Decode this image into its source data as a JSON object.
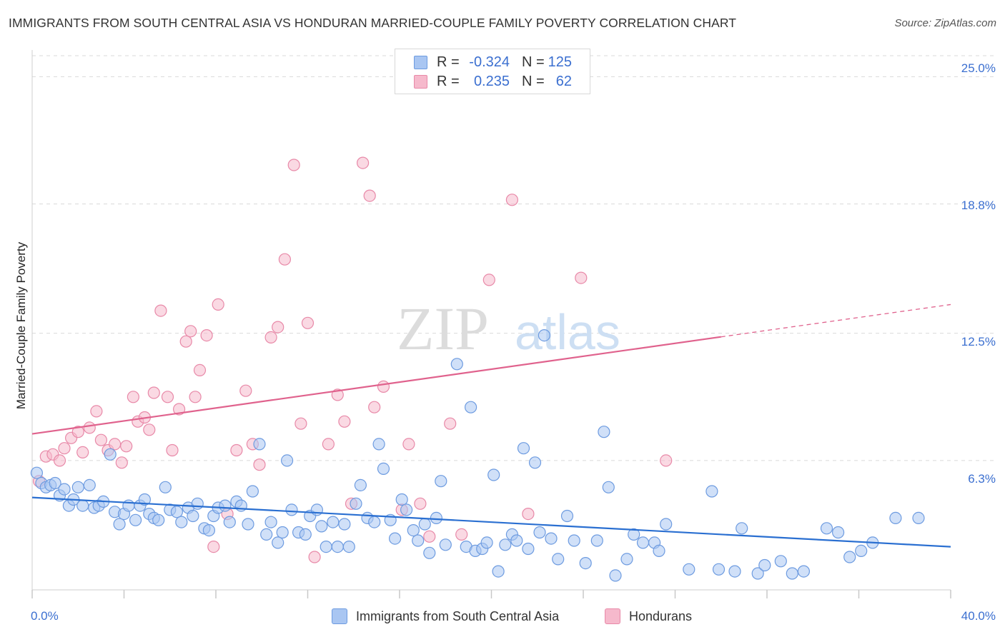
{
  "header": {
    "title": "IMMIGRANTS FROM SOUTH CENTRAL ASIA VS HONDURAN MARRIED-COUPLE FAMILY POVERTY CORRELATION CHART",
    "source": "Source: ZipAtlas.com"
  },
  "watermark": {
    "zip": "ZIP",
    "atlas": "atlas"
  },
  "legend_top": {
    "rows": [
      {
        "r_label": "R =",
        "r_value": "-0.324",
        "n_label": "N =",
        "n_value": "125",
        "color": "#a9c6f2"
      },
      {
        "r_label": "R =",
        "r_value": "0.235",
        "n_label": "N =",
        "n_value": "62",
        "color": "#f6b9cc"
      }
    ]
  },
  "legend_bottom": {
    "items": [
      {
        "label": "Immigrants from South Central Asia",
        "color": "#a9c6f2"
      },
      {
        "label": "Hondurans",
        "color": "#f6b9cc"
      }
    ]
  },
  "axes": {
    "x_min_label": "0.0%",
    "x_max_label": "40.0%",
    "y_ticks": [
      "25.0%",
      "18.8%",
      "12.5%",
      "6.3%"
    ],
    "ylabel": "Married-Couple Family Poverty"
  },
  "colors": {
    "blue_fill": "#a9c6f2",
    "blue_stroke": "#6d9be0",
    "blue_line": "#2a6fd1",
    "pink_fill": "#f6b9cc",
    "pink_stroke": "#e889a8",
    "pink_line": "#e0628d",
    "grid": "#d9d9d9",
    "axis_label": "#3b6fd0"
  },
  "chart_data": {
    "type": "scatter",
    "title": "IMMIGRANTS FROM SOUTH CENTRAL ASIA VS HONDURAN MARRIED-COUPLE FAMILY POVERTY CORRELATION CHART",
    "xlabel": "",
    "ylabel": "Married-Couple Family Poverty",
    "xlim": [
      0,
      40
    ],
    "ylim": [
      0,
      26.3
    ],
    "y_ticks": [
      6.3,
      12.5,
      18.8,
      25.0
    ],
    "grid": true,
    "legend_position": "top-center",
    "series": [
      {
        "name": "Immigrants from South Central Asia",
        "r": -0.324,
        "n": 125,
        "trend": {
          "x0": 0,
          "y0": 4.5,
          "x1": 40,
          "y1": 2.1,
          "solid_until": 40
        },
        "points": [
          [
            0.2,
            5.7
          ],
          [
            0.4,
            5.2
          ],
          [
            0.6,
            5.0
          ],
          [
            0.8,
            5.1
          ],
          [
            1.0,
            5.2
          ],
          [
            1.2,
            4.6
          ],
          [
            1.4,
            4.9
          ],
          [
            1.6,
            4.1
          ],
          [
            1.8,
            4.4
          ],
          [
            2.0,
            5.0
          ],
          [
            2.2,
            4.1
          ],
          [
            2.5,
            5.1
          ],
          [
            2.7,
            4.0
          ],
          [
            2.9,
            4.1
          ],
          [
            3.1,
            4.3
          ],
          [
            3.4,
            6.6
          ],
          [
            3.6,
            3.8
          ],
          [
            3.8,
            3.2
          ],
          [
            4.0,
            3.7
          ],
          [
            4.2,
            4.1
          ],
          [
            4.5,
            3.4
          ],
          [
            4.7,
            4.1
          ],
          [
            4.9,
            4.4
          ],
          [
            5.1,
            3.7
          ],
          [
            5.3,
            3.5
          ],
          [
            5.5,
            3.4
          ],
          [
            5.8,
            5.0
          ],
          [
            6.0,
            3.9
          ],
          [
            6.3,
            3.8
          ],
          [
            6.5,
            3.3
          ],
          [
            6.8,
            4.0
          ],
          [
            7.0,
            3.6
          ],
          [
            7.2,
            4.2
          ],
          [
            7.5,
            3.0
          ],
          [
            7.7,
            2.9
          ],
          [
            7.9,
            3.6
          ],
          [
            8.1,
            4.0
          ],
          [
            8.4,
            4.1
          ],
          [
            8.6,
            3.3
          ],
          [
            8.9,
            4.3
          ],
          [
            9.1,
            4.1
          ],
          [
            9.4,
            3.2
          ],
          [
            9.6,
            4.8
          ],
          [
            9.9,
            7.1
          ],
          [
            10.2,
            2.7
          ],
          [
            10.4,
            3.3
          ],
          [
            10.7,
            2.3
          ],
          [
            10.9,
            2.8
          ],
          [
            11.1,
            6.3
          ],
          [
            11.3,
            3.9
          ],
          [
            11.6,
            2.8
          ],
          [
            11.9,
            2.7
          ],
          [
            12.1,
            3.6
          ],
          [
            12.4,
            3.9
          ],
          [
            12.6,
            3.1
          ],
          [
            12.8,
            2.1
          ],
          [
            13.1,
            3.3
          ],
          [
            13.3,
            2.1
          ],
          [
            13.6,
            3.2
          ],
          [
            13.8,
            2.1
          ],
          [
            14.1,
            4.2
          ],
          [
            14.3,
            5.1
          ],
          [
            14.6,
            3.5
          ],
          [
            14.9,
            3.3
          ],
          [
            15.1,
            7.1
          ],
          [
            15.3,
            5.9
          ],
          [
            15.6,
            3.4
          ],
          [
            15.8,
            2.5
          ],
          [
            16.1,
            4.4
          ],
          [
            16.3,
            3.9
          ],
          [
            16.6,
            2.9
          ],
          [
            16.8,
            2.4
          ],
          [
            17.1,
            3.2
          ],
          [
            17.3,
            1.8
          ],
          [
            17.6,
            3.5
          ],
          [
            17.8,
            5.3
          ],
          [
            18.0,
            2.2
          ],
          [
            18.5,
            11.0
          ],
          [
            18.9,
            2.1
          ],
          [
            19.1,
            8.9
          ],
          [
            19.3,
            1.9
          ],
          [
            19.6,
            2.0
          ],
          [
            19.8,
            2.3
          ],
          [
            20.1,
            5.6
          ],
          [
            20.3,
            0.9
          ],
          [
            20.6,
            2.2
          ],
          [
            20.9,
            2.7
          ],
          [
            21.1,
            2.4
          ],
          [
            21.4,
            6.9
          ],
          [
            21.6,
            2.0
          ],
          [
            21.9,
            6.2
          ],
          [
            22.1,
            2.8
          ],
          [
            22.3,
            12.4
          ],
          [
            22.6,
            2.5
          ],
          [
            22.9,
            1.5
          ],
          [
            23.3,
            3.6
          ],
          [
            23.6,
            2.4
          ],
          [
            24.1,
            1.3
          ],
          [
            24.6,
            2.4
          ],
          [
            24.9,
            7.7
          ],
          [
            25.1,
            5.0
          ],
          [
            25.4,
            0.7
          ],
          [
            25.9,
            1.5
          ],
          [
            26.2,
            2.7
          ],
          [
            26.6,
            2.3
          ],
          [
            27.1,
            2.3
          ],
          [
            27.3,
            1.9
          ],
          [
            27.6,
            3.2
          ],
          [
            28.6,
            1.0
          ],
          [
            29.6,
            4.8
          ],
          [
            29.9,
            1.0
          ],
          [
            30.6,
            0.9
          ],
          [
            30.9,
            3.0
          ],
          [
            31.6,
            0.8
          ],
          [
            31.9,
            1.2
          ],
          [
            32.6,
            1.4
          ],
          [
            33.1,
            0.8
          ],
          [
            33.6,
            0.9
          ],
          [
            34.6,
            3.0
          ],
          [
            35.1,
            2.8
          ],
          [
            35.6,
            1.6
          ],
          [
            36.1,
            1.9
          ],
          [
            36.6,
            2.3
          ],
          [
            37.6,
            3.5
          ],
          [
            38.6,
            3.5
          ]
        ]
      },
      {
        "name": "Hondurans",
        "r": 0.235,
        "n": 62,
        "trend": {
          "x0": 0,
          "y0": 7.6,
          "x1": 40,
          "y1": 13.9,
          "solid_until": 30
        },
        "points": [
          [
            0.3,
            5.3
          ],
          [
            0.6,
            6.5
          ],
          [
            0.9,
            6.6
          ],
          [
            1.2,
            6.3
          ],
          [
            1.4,
            6.9
          ],
          [
            1.7,
            7.4
          ],
          [
            2.0,
            7.7
          ],
          [
            2.2,
            6.7
          ],
          [
            2.5,
            7.9
          ],
          [
            2.8,
            8.7
          ],
          [
            3.0,
            7.3
          ],
          [
            3.3,
            6.8
          ],
          [
            3.6,
            7.1
          ],
          [
            3.9,
            6.2
          ],
          [
            4.1,
            7.0
          ],
          [
            4.4,
            9.4
          ],
          [
            4.6,
            8.2
          ],
          [
            4.9,
            8.4
          ],
          [
            5.1,
            7.8
          ],
          [
            5.3,
            9.6
          ],
          [
            5.6,
            13.6
          ],
          [
            5.9,
            9.4
          ],
          [
            6.1,
            6.8
          ],
          [
            6.4,
            8.8
          ],
          [
            6.7,
            12.1
          ],
          [
            6.9,
            12.6
          ],
          [
            7.1,
            9.4
          ],
          [
            7.3,
            10.7
          ],
          [
            7.6,
            12.4
          ],
          [
            7.9,
            2.1
          ],
          [
            8.1,
            13.9
          ],
          [
            8.5,
            3.7
          ],
          [
            8.9,
            6.8
          ],
          [
            9.3,
            9.7
          ],
          [
            9.6,
            7.1
          ],
          [
            9.9,
            6.1
          ],
          [
            10.4,
            12.3
          ],
          [
            10.7,
            12.8
          ],
          [
            11.0,
            16.1
          ],
          [
            11.4,
            20.7
          ],
          [
            11.7,
            8.1
          ],
          [
            12.0,
            13.0
          ],
          [
            12.3,
            1.6
          ],
          [
            12.9,
            7.1
          ],
          [
            13.3,
            9.5
          ],
          [
            13.6,
            8.2
          ],
          [
            13.9,
            4.2
          ],
          [
            14.4,
            20.8
          ],
          [
            14.7,
            19.2
          ],
          [
            14.9,
            8.9
          ],
          [
            15.3,
            9.9
          ],
          [
            16.1,
            3.9
          ],
          [
            16.4,
            7.1
          ],
          [
            16.9,
            4.2
          ],
          [
            17.3,
            2.6
          ],
          [
            18.2,
            8.1
          ],
          [
            18.7,
            2.7
          ],
          [
            19.9,
            15.1
          ],
          [
            20.9,
            19.0
          ],
          [
            21.6,
            3.7
          ],
          [
            23.9,
            15.2
          ],
          [
            27.6,
            6.3
          ]
        ]
      }
    ]
  }
}
